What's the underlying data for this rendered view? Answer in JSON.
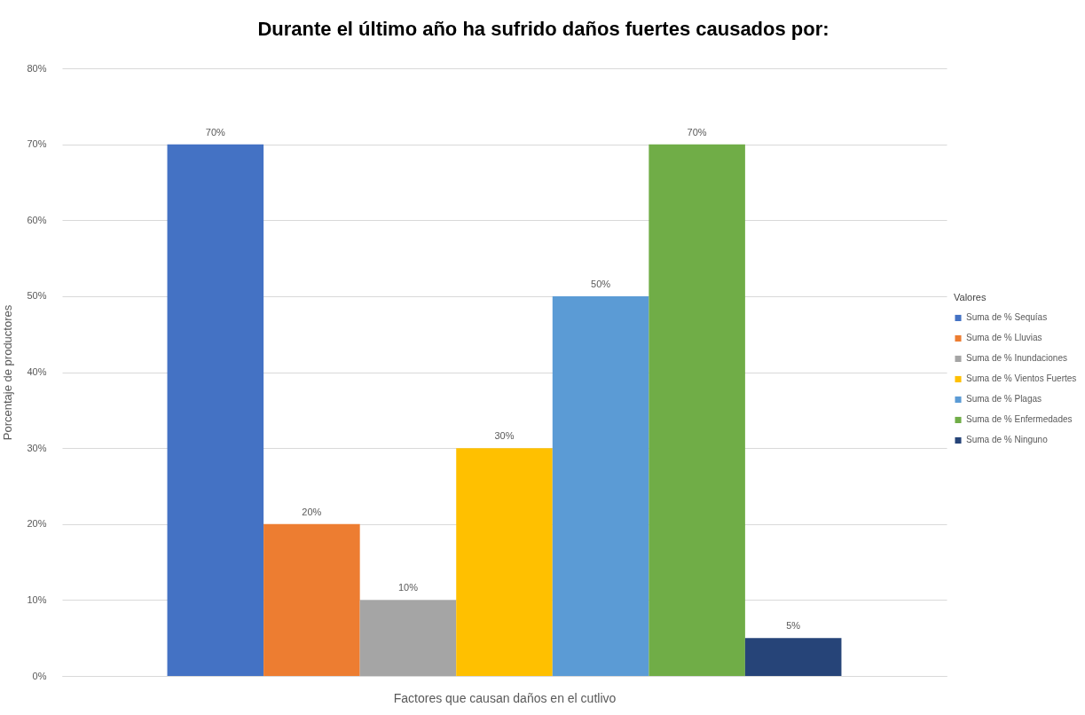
{
  "chart_data": {
    "type": "bar",
    "title": "Durante el último año ha sufrido daños fuertes causados por:",
    "xlabel": "Factores que causan daños en el cutlivo",
    "ylabel": "Porcentaje de productores",
    "legend_title": "Valores",
    "categories": [
      null
    ],
    "series": [
      {
        "name": "Suma de % Sequías",
        "color": "#4472c4",
        "values": [
          70
        ],
        "value_labels": [
          "70%"
        ]
      },
      {
        "name": "Suma de % Lluvias",
        "color": "#ed7d31",
        "values": [
          20
        ],
        "value_labels": [
          "20%"
        ]
      },
      {
        "name": "Suma de % Inundaciones",
        "color": "#a5a5a5",
        "values": [
          10
        ],
        "value_labels": [
          "10%"
        ]
      },
      {
        "name": "Suma de % Vientos Fuertes",
        "color": "#ffc000",
        "values": [
          30
        ],
        "value_labels": [
          "30%"
        ]
      },
      {
        "name": "Suma de % Plagas",
        "color": "#5b9bd5",
        "values": [
          50
        ],
        "value_labels": [
          "50%"
        ]
      },
      {
        "name": "Suma de % Enfermedades",
        "color": "#70ad47",
        "values": [
          70
        ],
        "value_labels": [
          "70%"
        ]
      },
      {
        "name": "Suma de % Ninguno",
        "color": "#264478",
        "values": [
          5
        ],
        "value_labels": [
          "5%"
        ]
      }
    ],
    "ylim": [
      0,
      80
    ],
    "yticks": [
      {
        "value": 0,
        "label": "0%"
      },
      {
        "value": 10,
        "label": "10%"
      },
      {
        "value": 20,
        "label": "20%"
      },
      {
        "value": 30,
        "label": "30%"
      },
      {
        "value": 40,
        "label": "40%"
      },
      {
        "value": 50,
        "label": "50%"
      },
      {
        "value": 60,
        "label": "60%"
      },
      {
        "value": 70,
        "label": "70%"
      },
      {
        "value": 80,
        "label": "80%"
      }
    ],
    "grid": "y",
    "legend": "right"
  }
}
